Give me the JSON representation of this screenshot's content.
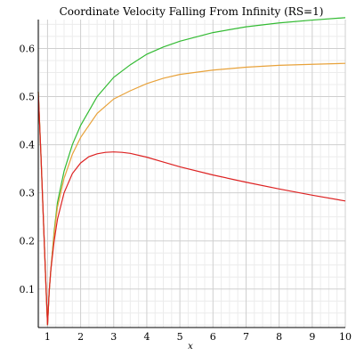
{
  "chart_data": {
    "type": "line",
    "title": "Coordinate Velocity Falling From Infinity (RS=1)",
    "xlabel": "x",
    "ylabel": "",
    "xlim": [
      0.72,
      10
    ],
    "ylim": [
      0.02,
      0.66
    ],
    "xticks": [
      1,
      2,
      3,
      4,
      5,
      6,
      7,
      8,
      9,
      10
    ],
    "yticks": [
      0.1,
      0.2,
      0.3,
      0.4,
      0.5,
      0.6
    ],
    "grid": true,
    "series": [
      {
        "color": "#33bb33",
        "x": [
          0.72,
          0.8,
          0.9,
          0.95,
          1.0,
          1.05,
          1.1,
          1.2,
          1.3,
          1.5,
          1.75,
          2.0,
          2.5,
          3.0,
          3.5,
          4.0,
          4.5,
          5.0,
          6.0,
          7.0,
          8.0,
          9.0,
          10.0
        ],
        "y": [
          0.51,
          0.38,
          0.2,
          0.11,
          0.025,
          0.095,
          0.14,
          0.22,
          0.28,
          0.345,
          0.4,
          0.44,
          0.5,
          0.54,
          0.566,
          0.588,
          0.603,
          0.615,
          0.633,
          0.645,
          0.653,
          0.659,
          0.664
        ]
      },
      {
        "color": "#e8a23a",
        "x": [
          0.72,
          0.8,
          0.9,
          0.95,
          1.0,
          1.05,
          1.1,
          1.2,
          1.3,
          1.5,
          1.75,
          2.0,
          2.5,
          3.0,
          3.5,
          4.0,
          4.5,
          5.0,
          6.0,
          7.0,
          8.0,
          9.0,
          10.0
        ],
        "y": [
          0.51,
          0.38,
          0.2,
          0.11,
          0.025,
          0.095,
          0.14,
          0.215,
          0.27,
          0.33,
          0.38,
          0.415,
          0.465,
          0.495,
          0.512,
          0.527,
          0.538,
          0.546,
          0.555,
          0.561,
          0.565,
          0.567,
          0.569
        ]
      },
      {
        "color": "#dd2222",
        "x": [
          0.72,
          0.8,
          0.9,
          0.95,
          1.0,
          1.05,
          1.1,
          1.2,
          1.3,
          1.5,
          1.75,
          2.0,
          2.25,
          2.5,
          2.75,
          3.0,
          3.25,
          3.5,
          4.0,
          4.5,
          5.0,
          6.0,
          7.0,
          8.0,
          9.0,
          10.0
        ],
        "y": [
          0.51,
          0.38,
          0.2,
          0.11,
          0.025,
          0.095,
          0.14,
          0.2,
          0.245,
          0.3,
          0.34,
          0.362,
          0.375,
          0.381,
          0.384,
          0.385,
          0.384,
          0.382,
          0.374,
          0.364,
          0.354,
          0.337,
          0.322,
          0.308,
          0.295,
          0.283
        ]
      }
    ]
  }
}
